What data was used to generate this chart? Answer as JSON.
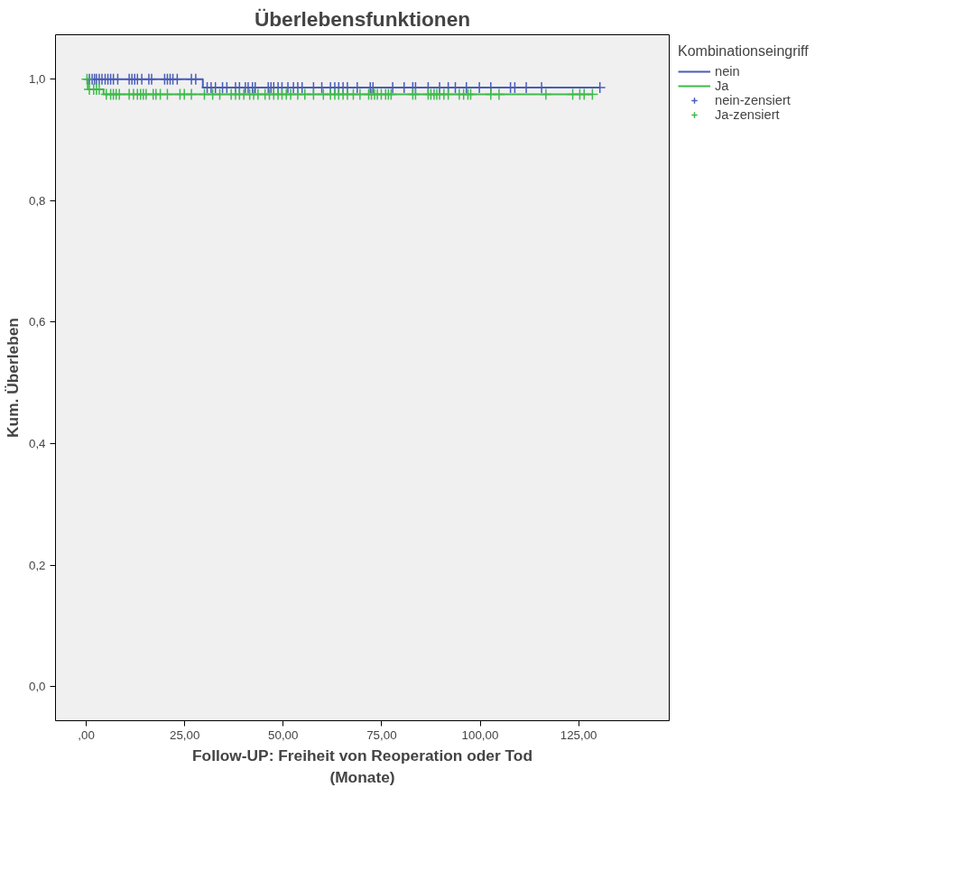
{
  "chart_data": {
    "type": "step",
    "title": "Überlebensfunktionen",
    "xlabel": "Follow-UP: Freiheit von Reoperation oder Tod\n(Monate)",
    "ylabel": "Kum. Überleben",
    "legend_title": "Kombinationseingriff",
    "legend": "top right",
    "grid": false,
    "xlim": [
      -7.8,
      148
    ],
    "ylim": [
      -0.056,
      1.073
    ],
    "xticks": [
      {
        "value": 0,
        "label": ",00"
      },
      {
        "value": 25,
        "label": "25,00"
      },
      {
        "value": 50,
        "label": "50,00"
      },
      {
        "value": 75,
        "label": "75,00"
      },
      {
        "value": 100,
        "label": "100,00"
      },
      {
        "value": 125,
        "label": "125,00"
      }
    ],
    "yticks": [
      {
        "value": 0,
        "label": "0,0"
      },
      {
        "value": 0.2,
        "label": "0,2"
      },
      {
        "value": 0.4,
        "label": "0,4"
      },
      {
        "value": 0.6,
        "label": "0,6"
      },
      {
        "value": 0.8,
        "label": "0,8"
      },
      {
        "value": 1.0,
        "label": "1,0"
      }
    ],
    "series": [
      {
        "name": "nein",
        "color": "#4a5cb8",
        "x": [
          0,
          29.6,
          130.4
        ],
        "values": [
          1.0,
          0.986,
          0.986
        ]
      },
      {
        "name": "Ja",
        "color": "#3dbb4a",
        "x": [
          0,
          0.4,
          4.4,
          128.5
        ],
        "values": [
          1.0,
          0.983,
          0.975,
          0.975
        ]
      },
      {
        "name": "nein-zensiert",
        "type": "scatter",
        "marker": "cross",
        "color": "#4a5cb8",
        "x": [
          0.8,
          1.5,
          2.1,
          2.6,
          3.3,
          4.0,
          4.8,
          5.5,
          6.2,
          6.9,
          8.0,
          10.9,
          11.6,
          12.3,
          13.0,
          14.1,
          15.9,
          16.6,
          19.9,
          20.6,
          21.3,
          22.0,
          23.1,
          26.7,
          27.8,
          30.7,
          31.7,
          32.8,
          34.6,
          35.7,
          37.9,
          38.9,
          40.4,
          41.1,
          42.2,
          42.9,
          46.2,
          46.9,
          47.6,
          48.7,
          49.7,
          51.2,
          52.6,
          53.7,
          54.8,
          57.7,
          59.8,
          62.0,
          63.1,
          64.1,
          65.2,
          66.3,
          68.8,
          72.1,
          72.8,
          77.8,
          80.7,
          82.9,
          83.6,
          86.8,
          89.7,
          91.9,
          93.7,
          96.5,
          99.8,
          102.7,
          107.7,
          108.8,
          111.7,
          115.6,
          130.4
        ],
        "values": [
          1.0,
          1.0,
          1.0,
          1.0,
          1.0,
          1.0,
          1.0,
          1.0,
          1.0,
          1.0,
          1.0,
          1.0,
          1.0,
          1.0,
          1.0,
          1.0,
          1.0,
          1.0,
          1.0,
          1.0,
          1.0,
          1.0,
          1.0,
          1.0,
          1.0,
          0.986,
          0.986,
          0.986,
          0.986,
          0.986,
          0.986,
          0.986,
          0.986,
          0.986,
          0.986,
          0.986,
          0.986,
          0.986,
          0.986,
          0.986,
          0.986,
          0.986,
          0.986,
          0.986,
          0.986,
          0.986,
          0.986,
          0.986,
          0.986,
          0.986,
          0.986,
          0.986,
          0.986,
          0.986,
          0.986,
          0.986,
          0.986,
          0.986,
          0.986,
          0.986,
          0.986,
          0.986,
          0.986,
          0.986,
          0.986,
          0.986,
          0.986,
          0.986,
          0.986,
          0.986,
          0.986
        ]
      },
      {
        "name": "Ja-zensiert",
        "type": "scatter",
        "marker": "cross",
        "color": "#3dbb4a",
        "x": [
          0.2,
          0.8,
          1.9,
          2.6,
          3.3,
          5.1,
          6.2,
          6.9,
          7.6,
          8.4,
          10.9,
          12.0,
          13.0,
          13.8,
          14.5,
          15.2,
          17.0,
          17.7,
          18.8,
          20.6,
          23.8,
          24.9,
          26.7,
          30.0,
          32.1,
          33.9,
          36.8,
          37.9,
          38.9,
          40.0,
          41.5,
          42.5,
          43.6,
          45.4,
          46.5,
          47.6,
          48.7,
          49.7,
          50.8,
          51.9,
          53.7,
          55.5,
          57.7,
          60.2,
          62.0,
          63.1,
          64.1,
          65.2,
          66.3,
          67.8,
          69.5,
          71.7,
          72.4,
          73.2,
          73.9,
          74.9,
          76.0,
          76.7,
          77.4,
          82.9,
          83.6,
          86.8,
          87.5,
          88.3,
          89.0,
          89.7,
          90.8,
          91.9,
          94.7,
          95.8,
          96.9,
          97.6,
          102.7,
          104.8,
          116.7,
          123.5,
          125.3,
          126.4,
          128.5
        ],
        "values": [
          1.0,
          0.983,
          0.983,
          0.983,
          0.983,
          0.975,
          0.975,
          0.975,
          0.975,
          0.975,
          0.975,
          0.975,
          0.975,
          0.975,
          0.975,
          0.975,
          0.975,
          0.975,
          0.975,
          0.975,
          0.975,
          0.975,
          0.975,
          0.975,
          0.975,
          0.975,
          0.975,
          0.975,
          0.975,
          0.975,
          0.975,
          0.975,
          0.975,
          0.975,
          0.975,
          0.975,
          0.975,
          0.975,
          0.975,
          0.975,
          0.975,
          0.975,
          0.975,
          0.975,
          0.975,
          0.975,
          0.975,
          0.975,
          0.975,
          0.975,
          0.975,
          0.975,
          0.975,
          0.975,
          0.975,
          0.975,
          0.975,
          0.975,
          0.975,
          0.975,
          0.975,
          0.975,
          0.975,
          0.975,
          0.975,
          0.975,
          0.975,
          0.975,
          0.975,
          0.975,
          0.975,
          0.975,
          0.975,
          0.975,
          0.975,
          0.975,
          0.975,
          0.975,
          0.975
        ]
      }
    ]
  }
}
